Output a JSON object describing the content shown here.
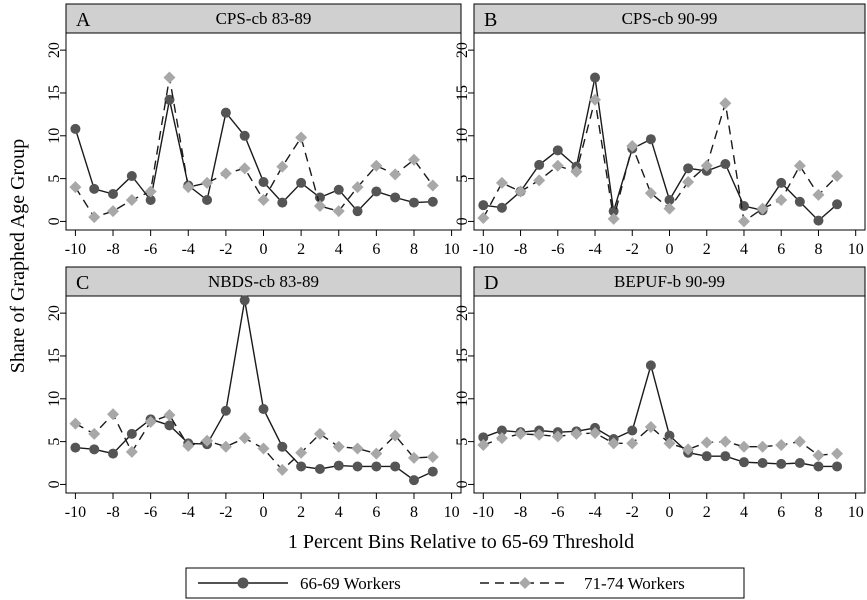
{
  "figure": {
    "ylabel": "Share of Graphed Age Group",
    "xlabel": "1 Percent Bins Relative to 65-69 Threshold",
    "legend": {
      "series_a": "66-69 Workers",
      "series_b": "71-74 Workers"
    }
  },
  "colors": {
    "strip_bg": "#d0d0d0",
    "line_a": "#1a1a1a",
    "marker_a": "#555555",
    "line_b": "#1a1a1a",
    "marker_b": "#a8a8a8"
  },
  "chart_data": [
    {
      "type": "line",
      "panel_letter": "A",
      "title": "CPS-cb 83-89",
      "x": [
        -10,
        -9,
        -8,
        -7,
        -6,
        -5,
        -4,
        -3,
        -2,
        -1,
        0,
        1,
        2,
        3,
        4,
        5,
        6,
        7,
        8,
        9
      ],
      "xlim": [
        -10.5,
        10.5
      ],
      "ylim": [
        -1,
        22
      ],
      "xticks": [
        "-10",
        "-8",
        "-6",
        "-4",
        "-2",
        "0",
        "2",
        "4",
        "6",
        "8",
        "10"
      ],
      "yticks": [
        "0",
        "5",
        "10",
        "15",
        "20"
      ],
      "series": [
        {
          "name": "66-69 Workers",
          "style": "solid-circle",
          "values": [
            10.8,
            3.8,
            3.2,
            5.3,
            2.5,
            14.2,
            4.2,
            2.5,
            12.7,
            10,
            4.6,
            2.2,
            4.5,
            2.8,
            3.7,
            1.2,
            3.5,
            2.8,
            2.2,
            2.3
          ]
        },
        {
          "name": "71-74 Workers",
          "style": "dash-diamond",
          "values": [
            4,
            0.5,
            1.2,
            2.5,
            3.5,
            16.8,
            4,
            4.5,
            5.6,
            6.2,
            2.5,
            6.4,
            9.8,
            1.8,
            1.2,
            4,
            6.5,
            5.5,
            7.2,
            4.2
          ]
        }
      ]
    },
    {
      "type": "line",
      "panel_letter": "B",
      "title": "CPS-cb 90-99",
      "x": [
        -10,
        -9,
        -8,
        -7,
        -6,
        -5,
        -4,
        -3,
        -2,
        -1,
        0,
        1,
        2,
        3,
        4,
        5,
        6,
        7,
        8,
        9
      ],
      "xlim": [
        -10.5,
        10.5
      ],
      "ylim": [
        -1,
        22
      ],
      "xticks": [
        "-10",
        "-8",
        "-6",
        "-4",
        "-2",
        "0",
        "2",
        "4",
        "6",
        "8",
        "10"
      ],
      "yticks": [
        "0",
        "5",
        "10",
        "15",
        "20"
      ],
      "series": [
        {
          "name": "66-69 Workers",
          "style": "solid-circle",
          "values": [
            1.9,
            1.6,
            3.5,
            6.6,
            8.3,
            6.4,
            16.8,
            1.2,
            8.5,
            9.6,
            2.5,
            6.2,
            5.9,
            6.7,
            1.8,
            1.3,
            4.5,
            2.3,
            0.1,
            2
          ]
        },
        {
          "name": "71-74 Workers",
          "style": "dash-diamond",
          "values": [
            0.4,
            4.5,
            3.5,
            4.8,
            6.5,
            5.8,
            14.2,
            0.3,
            8.8,
            3.3,
            1.5,
            4.6,
            6.5,
            13.8,
            0,
            1.5,
            2.5,
            6.5,
            3.1,
            5.3
          ]
        }
      ]
    },
    {
      "type": "line",
      "panel_letter": "C",
      "title": "NBDS-cb 83-89",
      "x": [
        -10,
        -9,
        -8,
        -7,
        -6,
        -5,
        -4,
        -3,
        -2,
        -1,
        0,
        1,
        2,
        3,
        4,
        5,
        6,
        7,
        8,
        9
      ],
      "xlim": [
        -10.5,
        10.5
      ],
      "ylim": [
        -1,
        22
      ],
      "xticks": [
        "-10",
        "-8",
        "-6",
        "-4",
        "-2",
        "0",
        "2",
        "4",
        "6",
        "8",
        "10"
      ],
      "yticks": [
        "0",
        "5",
        "10",
        "15",
        "20"
      ],
      "series": [
        {
          "name": "66-69 Workers",
          "style": "solid-circle",
          "values": [
            4.3,
            4.1,
            3.6,
            5.9,
            7.6,
            6.9,
            4.8,
            4.7,
            8.6,
            21.5,
            8.8,
            4.4,
            2.1,
            1.8,
            2.2,
            2.1,
            2.1,
            2.1,
            0.5,
            1.5
          ]
        },
        {
          "name": "71-74 Workers",
          "style": "dash-diamond",
          "values": [
            7.1,
            5.9,
            8.2,
            3.8,
            7.3,
            8.1,
            4.5,
            5.1,
            4.4,
            5.4,
            4.2,
            1.7,
            3.7,
            5.9,
            4.4,
            4.2,
            3.6,
            5.7,
            3.1,
            3.2
          ]
        }
      ]
    },
    {
      "type": "line",
      "panel_letter": "D",
      "title": "BEPUF-b 90-99",
      "x": [
        -10,
        -9,
        -8,
        -7,
        -6,
        -5,
        -4,
        -3,
        -2,
        -1,
        0,
        1,
        2,
        3,
        4,
        5,
        6,
        7,
        8,
        9
      ],
      "xlim": [
        -10.5,
        10.5
      ],
      "ylim": [
        -1,
        22
      ],
      "xticks": [
        "-10",
        "-8",
        "-6",
        "-4",
        "-2",
        "0",
        "2",
        "4",
        "6",
        "8",
        "10"
      ],
      "yticks": [
        "0",
        "5",
        "10",
        "15",
        "20"
      ],
      "series": [
        {
          "name": "66-69 Workers",
          "style": "solid-circle",
          "values": [
            5.5,
            6.3,
            6.1,
            6.3,
            6.1,
            6.2,
            6.6,
            5.3,
            6.3,
            13.9,
            5.7,
            3.7,
            3.3,
            3.3,
            2.6,
            2.5,
            2.4,
            2.5,
            2.1,
            2.1
          ]
        },
        {
          "name": "71-74 Workers",
          "style": "dash-diamond",
          "values": [
            4.6,
            5.4,
            5.9,
            5.8,
            5.6,
            5.9,
            6,
            4.8,
            4.8,
            6.7,
            4.8,
            4.1,
            4.9,
            5,
            4.4,
            4.4,
            4.6,
            5,
            3.4,
            3.6
          ]
        }
      ]
    }
  ]
}
